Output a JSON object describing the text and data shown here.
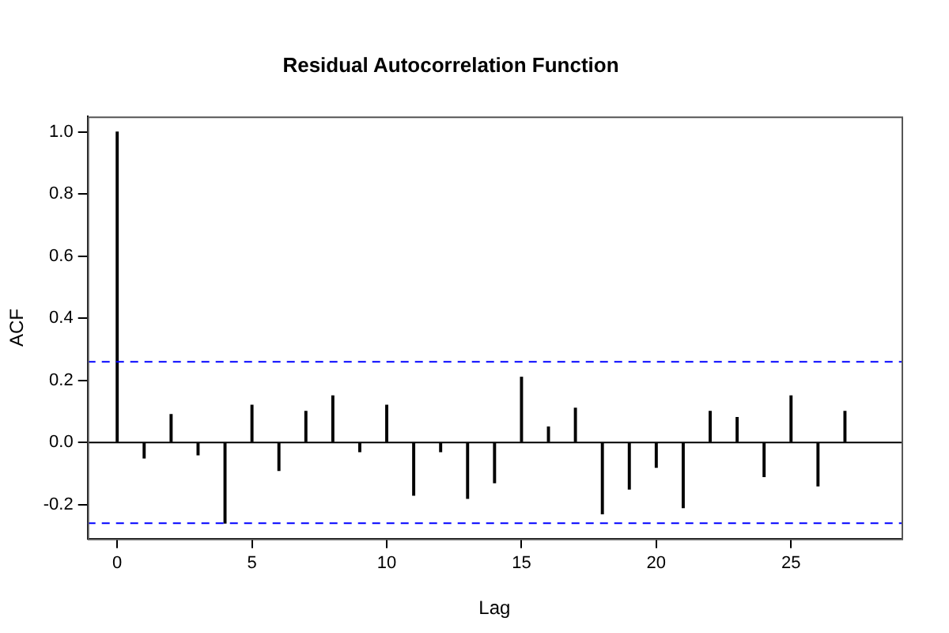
{
  "chart_data": {
    "type": "bar",
    "title": "Residual Autocorrelation Function",
    "xlabel": "Lag",
    "ylabel": "ACF",
    "x": [
      0,
      1,
      2,
      3,
      4,
      5,
      6,
      7,
      8,
      9,
      10,
      11,
      12,
      13,
      14,
      15,
      16,
      17,
      18,
      19,
      20,
      21,
      22,
      23,
      24,
      25,
      26,
      27
    ],
    "values": [
      1.0,
      -0.05,
      0.09,
      -0.04,
      -0.26,
      0.12,
      -0.09,
      0.1,
      0.15,
      -0.03,
      0.12,
      -0.17,
      -0.03,
      -0.18,
      -0.13,
      0.21,
      0.05,
      0.11,
      -0.23,
      -0.15,
      -0.08,
      -0.21,
      0.1,
      0.08,
      -0.11,
      0.15,
      -0.14,
      0.1
    ],
    "color": "#000000",
    "xlim": [
      -1.1,
      29.1
    ],
    "xticks": [
      0,
      5,
      10,
      15,
      20,
      25
    ],
    "ylim": [
      -0.31,
      1.05
    ],
    "yticks": [
      {
        "value": -0.2,
        "label": "-0.2"
      },
      {
        "value": 0,
        "label": "0.0"
      },
      {
        "value": 0.2,
        "label": "0.2"
      },
      {
        "value": 0.4,
        "label": "0.4"
      },
      {
        "value": 0.6,
        "label": "0.6"
      },
      {
        "value": 0.8,
        "label": "0.8"
      },
      {
        "value": 1,
        "label": "1.0"
      }
    ],
    "ref_lines": [
      {
        "axis": "y",
        "value": 0,
        "color": "#000000",
        "line_style": "solid"
      },
      {
        "axis": "y",
        "value": 0.26,
        "color": "#0000ff",
        "line_style": "dashed"
      },
      {
        "axis": "y",
        "value": -0.26,
        "color": "#0000ff",
        "line_style": "dashed"
      }
    ],
    "grid": false,
    "legend": false
  }
}
